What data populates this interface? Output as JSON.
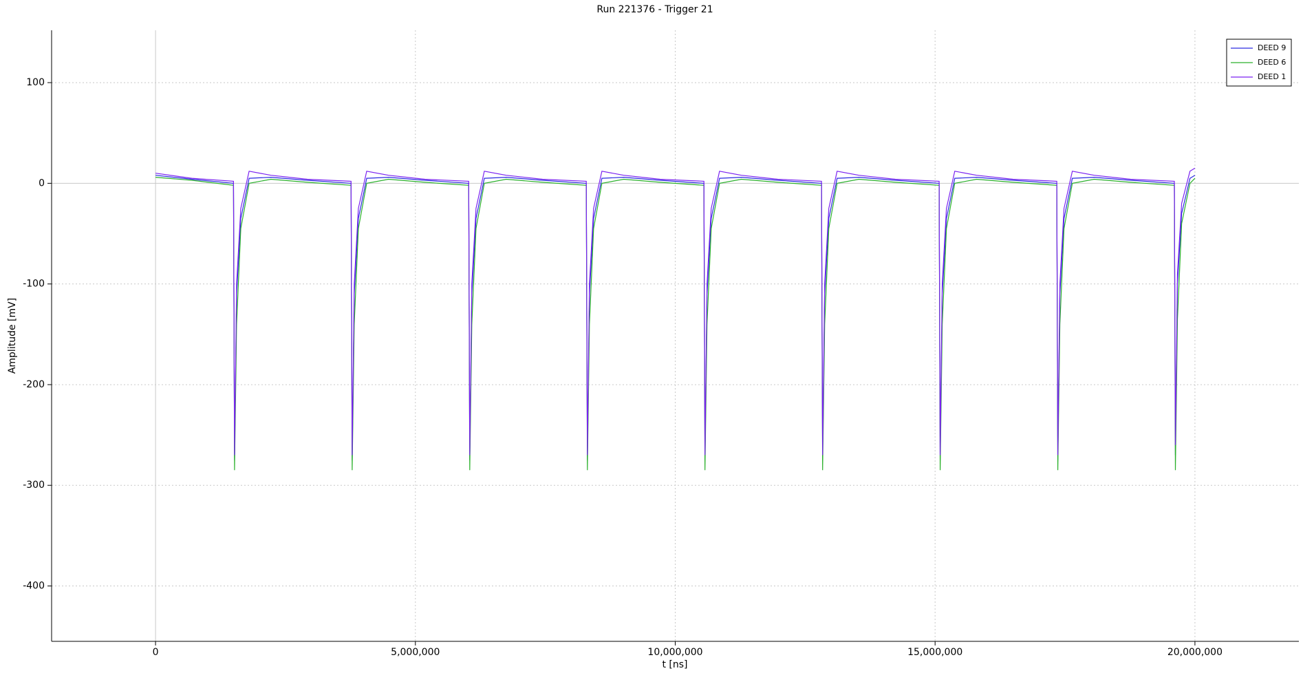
{
  "chart_data": {
    "type": "line",
    "title": "Run 221376 - Trigger 21",
    "x_label": "t [ns]",
    "y_label": "Amplitude [mV]",
    "xlim": [
      -2000000,
      22000000
    ],
    "xticks": [
      0,
      {
        "value": 5000000,
        "label": "5,000,000"
      },
      {
        "value": 10000000,
        "label": "10,000,000"
      },
      {
        "value": 15000000,
        "label": "15,000,000"
      },
      {
        "value": 20000000,
        "label": "20,000,000"
      }
    ],
    "ylim": [
      -455,
      152
    ],
    "yticks": [
      -400,
      -300,
      -200,
      -100,
      0,
      100
    ],
    "grid": true,
    "legend": "upper right",
    "x": [
      0,
      700000,
      1500000,
      1520000,
      1560000,
      1640000,
      1800000,
      2220000,
      2920000,
      3763000,
      3783000,
      3823000,
      3903000,
      4063000,
      4483000,
      5183000,
      6026000,
      6046000,
      6086000,
      6166000,
      6326000,
      6746000,
      7446000,
      8289000,
      8309000,
      8349000,
      8429000,
      8589000,
      9009000,
      9709000,
      10552000,
      10572000,
      10612000,
      10692000,
      10852000,
      11272000,
      11972000,
      12815000,
      12835000,
      12875000,
      12955000,
      13115000,
      13535000,
      14235000,
      15078000,
      15098000,
      15138000,
      15218000,
      15378000,
      15798000,
      16498000,
      17341000,
      17361000,
      17401000,
      17481000,
      17641000,
      18061000,
      18761000,
      19604000,
      19624000,
      19664000,
      19744000,
      19904000,
      20000000
    ],
    "series": [
      {
        "name": "DEED 9",
        "color": "#2a2ae0",
        "values": [
          8,
          4,
          0,
          -275,
          -110,
          -35,
          5,
          6,
          3,
          0,
          -275,
          -110,
          -35,
          5,
          6,
          3,
          0,
          -275,
          -110,
          -35,
          5,
          6,
          3,
          0,
          -275,
          -110,
          -35,
          5,
          6,
          3,
          0,
          -275,
          -110,
          -35,
          5,
          6,
          3,
          0,
          -275,
          -110,
          -35,
          5,
          6,
          3,
          0,
          -275,
          -110,
          -35,
          5,
          6,
          3,
          0,
          -275,
          -110,
          -35,
          5,
          6,
          3,
          0,
          -270,
          -100,
          -30,
          5,
          8
        ]
      },
      {
        "name": "DEED 6",
        "color": "#2ab02a",
        "values": [
          6,
          3,
          -2,
          -285,
          -140,
          -45,
          0,
          4,
          1,
          -2,
          -285,
          -140,
          -45,
          0,
          4,
          1,
          -2,
          -285,
          -140,
          -45,
          0,
          4,
          1,
          -2,
          -285,
          -140,
          -45,
          0,
          4,
          1,
          -2,
          -285,
          -140,
          -45,
          0,
          4,
          1,
          -2,
          -285,
          -140,
          -45,
          0,
          4,
          1,
          -2,
          -285,
          -140,
          -45,
          0,
          4,
          1,
          -2,
          -285,
          -140,
          -45,
          0,
          4,
          1,
          -2,
          -285,
          -135,
          -40,
          0,
          5
        ]
      },
      {
        "name": "DEED 1",
        "color": "#7a22f0",
        "values": [
          10,
          5,
          2,
          -270,
          -100,
          -25,
          12,
          8,
          4,
          2,
          -270,
          -100,
          -25,
          12,
          8,
          4,
          2,
          -270,
          -100,
          -25,
          12,
          8,
          4,
          2,
          -270,
          -100,
          -25,
          12,
          8,
          4,
          2,
          -270,
          -100,
          -25,
          12,
          8,
          4,
          2,
          -270,
          -100,
          -25,
          12,
          8,
          4,
          2,
          -270,
          -100,
          -25,
          12,
          8,
          4,
          2,
          -270,
          -100,
          -25,
          12,
          8,
          4,
          2,
          -260,
          -90,
          -20,
          12,
          15
        ]
      }
    ]
  }
}
